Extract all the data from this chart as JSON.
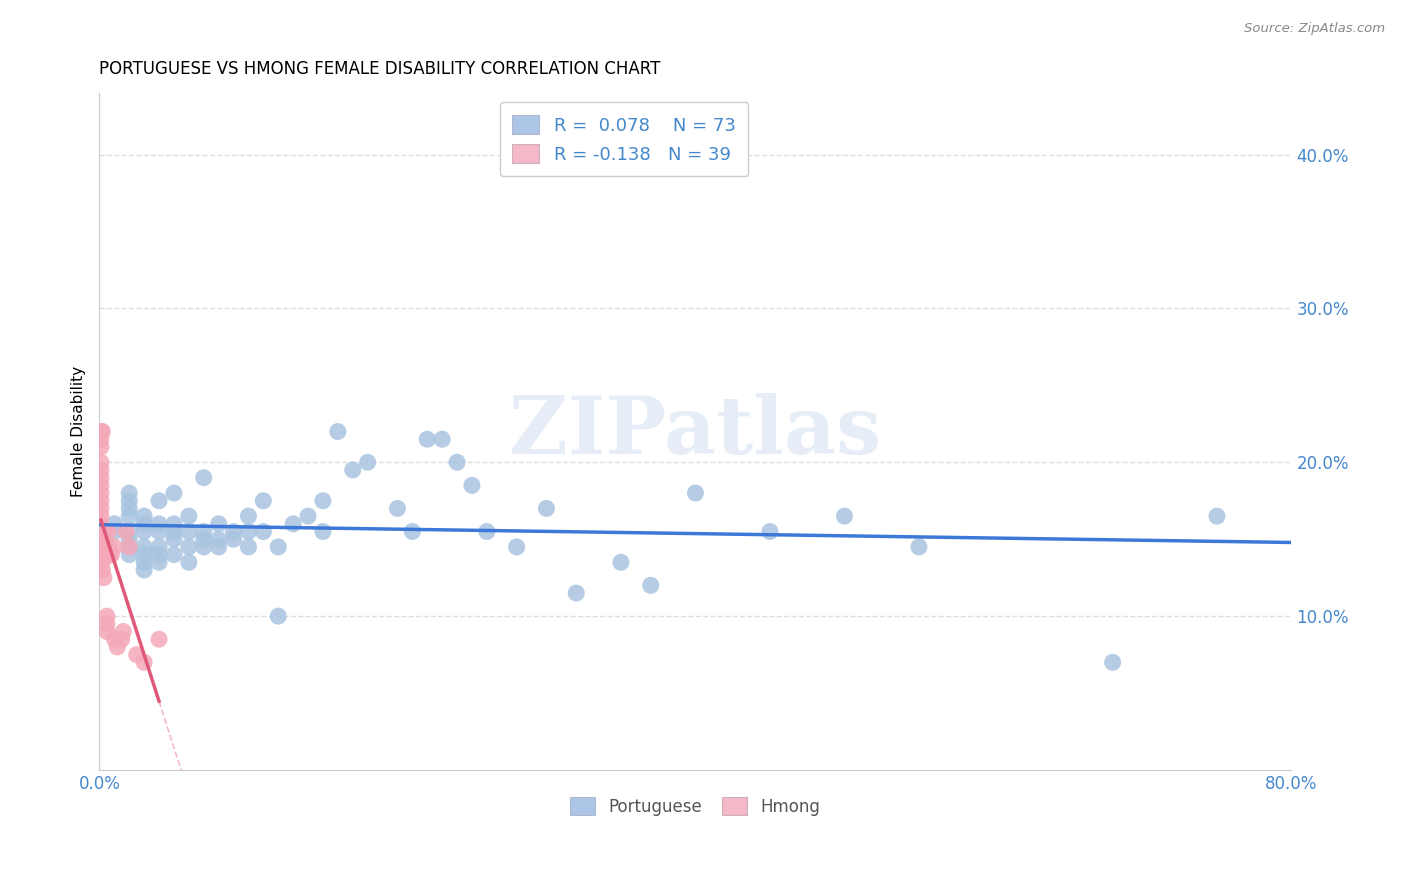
{
  "title": "PORTUGUESE VS HMONG FEMALE DISABILITY CORRELATION CHART",
  "source": "Source: ZipAtlas.com",
  "ylabel": "Female Disability",
  "xlim": [
    0.0,
    0.8
  ],
  "ylim": [
    0.0,
    0.44
  ],
  "R_blue": 0.078,
  "N_blue": 73,
  "R_pink": -0.138,
  "N_pink": 39,
  "blue_color": "#a8c4e0",
  "pink_color": "#f4a8b8",
  "blue_line_color": "#3c78d8",
  "pink_line_color": "#e05878",
  "legend_blue_fill": "#adc6e8",
  "legend_pink_fill": "#f4b8c8",
  "portuguese_x": [
    0.01,
    0.01,
    0.02,
    0.02,
    0.02,
    0.02,
    0.02,
    0.02,
    0.02,
    0.02,
    0.03,
    0.03,
    0.03,
    0.03,
    0.03,
    0.03,
    0.03,
    0.04,
    0.04,
    0.04,
    0.04,
    0.04,
    0.04,
    0.05,
    0.05,
    0.05,
    0.05,
    0.05,
    0.06,
    0.06,
    0.06,
    0.06,
    0.07,
    0.07,
    0.07,
    0.07,
    0.08,
    0.08,
    0.08,
    0.09,
    0.09,
    0.1,
    0.1,
    0.1,
    0.11,
    0.11,
    0.12,
    0.12,
    0.13,
    0.14,
    0.15,
    0.15,
    0.16,
    0.17,
    0.18,
    0.2,
    0.21,
    0.22,
    0.23,
    0.24,
    0.25,
    0.26,
    0.28,
    0.3,
    0.32,
    0.35,
    0.37,
    0.4,
    0.45,
    0.5,
    0.55,
    0.68,
    0.75
  ],
  "portuguese_y": [
    0.155,
    0.16,
    0.14,
    0.145,
    0.15,
    0.155,
    0.165,
    0.17,
    0.175,
    0.18,
    0.13,
    0.135,
    0.14,
    0.145,
    0.155,
    0.16,
    0.165,
    0.135,
    0.14,
    0.145,
    0.155,
    0.16,
    0.175,
    0.14,
    0.15,
    0.155,
    0.16,
    0.18,
    0.135,
    0.145,
    0.155,
    0.165,
    0.145,
    0.15,
    0.155,
    0.19,
    0.145,
    0.15,
    0.16,
    0.15,
    0.155,
    0.145,
    0.155,
    0.165,
    0.155,
    0.175,
    0.1,
    0.145,
    0.16,
    0.165,
    0.155,
    0.175,
    0.22,
    0.195,
    0.2,
    0.17,
    0.155,
    0.215,
    0.215,
    0.2,
    0.185,
    0.155,
    0.145,
    0.17,
    0.115,
    0.135,
    0.12,
    0.18,
    0.155,
    0.165,
    0.145,
    0.07,
    0.165
  ],
  "hmong_x": [
    0.001,
    0.001,
    0.001,
    0.001,
    0.001,
    0.001,
    0.001,
    0.001,
    0.001,
    0.001,
    0.001,
    0.001,
    0.001,
    0.001,
    0.001,
    0.002,
    0.002,
    0.002,
    0.002,
    0.003,
    0.003,
    0.004,
    0.005,
    0.005,
    0.005,
    0.006,
    0.006,
    0.007,
    0.008,
    0.01,
    0.01,
    0.012,
    0.015,
    0.016,
    0.018,
    0.02,
    0.025,
    0.03,
    0.04
  ],
  "hmong_y": [
    0.155,
    0.16,
    0.165,
    0.17,
    0.175,
    0.18,
    0.185,
    0.19,
    0.195,
    0.2,
    0.21,
    0.215,
    0.22,
    0.145,
    0.14,
    0.13,
    0.135,
    0.14,
    0.22,
    0.125,
    0.145,
    0.155,
    0.09,
    0.095,
    0.1,
    0.145,
    0.155,
    0.14,
    0.14,
    0.145,
    0.085,
    0.08,
    0.085,
    0.09,
    0.155,
    0.145,
    0.075,
    0.07,
    0.085
  ],
  "watermark": "ZIPatlas",
  "bg_color": "#ffffff",
  "grid_color": "#dddddd",
  "tick_color": "#4488cc",
  "x_ticks": [
    0.0,
    0.1,
    0.2,
    0.3,
    0.4,
    0.5,
    0.6,
    0.7,
    0.8
  ],
  "y_ticks": [
    0.1,
    0.2,
    0.3,
    0.4
  ]
}
